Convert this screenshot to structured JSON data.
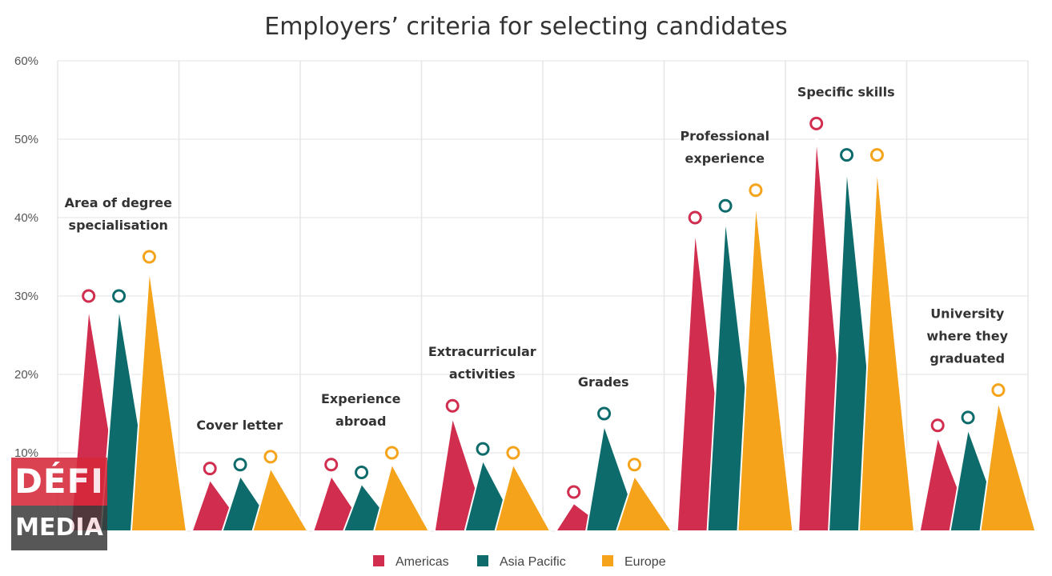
{
  "chart_data": {
    "type": "area",
    "title": "Employers’ criteria for selecting candidates",
    "xlabel": "",
    "ylabel": "",
    "ylim": [
      0,
      60
    ],
    "yticks": [
      "60%",
      "50%",
      "40%",
      "30%",
      "20%",
      "10%"
    ],
    "grid": true,
    "legend_position": "bottom",
    "categories": [
      [
        "Area of degree",
        "specialisation"
      ],
      [
        "Cover letter"
      ],
      [
        "Experience",
        "abroad"
      ],
      [
        "Extracurricular",
        "activities"
      ],
      [
        "Grades"
      ],
      [
        "Professional",
        "experience"
      ],
      [
        "Specific skills"
      ],
      [
        "University",
        "where they",
        "graduated"
      ]
    ],
    "series": [
      {
        "name": "Americas",
        "color": "#d12d4e",
        "values": [
          30,
          8,
          8.5,
          16,
          5,
          40,
          52,
          13.5
        ]
      },
      {
        "name": "Asia Pacific",
        "color": "#0e6b6b",
        "values": [
          30,
          8.5,
          7.5,
          10.5,
          15,
          41.5,
          48,
          14.5
        ]
      },
      {
        "name": "Europe",
        "color": "#f4a31a",
        "values": [
          35,
          9.5,
          10,
          10,
          8.5,
          43.5,
          48,
          18
        ]
      }
    ]
  },
  "watermark": {
    "top": "DÉFI",
    "bottom": "MEDIA"
  }
}
